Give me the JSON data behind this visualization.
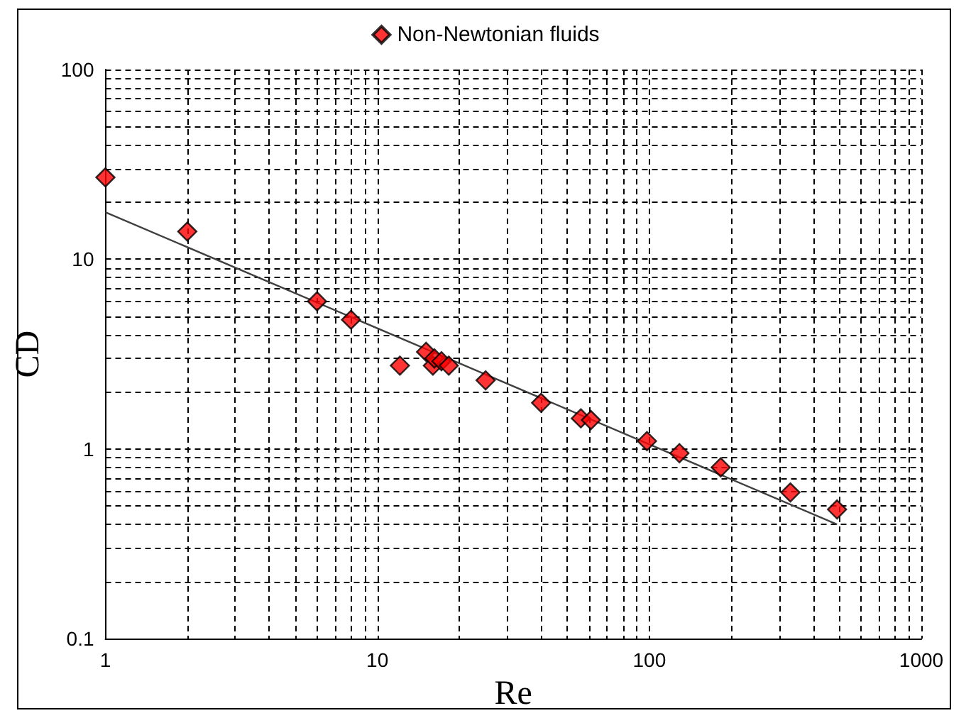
{
  "chart_data": {
    "type": "scatter",
    "xlabel": "Re",
    "ylabel": "CD",
    "log": "xy",
    "grid": true,
    "legend": "top",
    "marker": "diamond",
    "xlim": [
      1,
      1000
    ],
    "xticks": [
      1,
      {
        "value": 2,
        "label": null
      },
      {
        "value": 3,
        "label": null
      },
      {
        "value": 4,
        "label": null
      },
      {
        "value": 5,
        "label": null
      },
      {
        "value": 6,
        "label": null
      },
      {
        "value": 7,
        "label": null
      },
      {
        "value": 8,
        "label": null
      },
      {
        "value": 9,
        "label": null
      },
      10,
      {
        "value": 20,
        "label": null
      },
      {
        "value": 30,
        "label": null
      },
      {
        "value": 40,
        "label": null
      },
      {
        "value": 50,
        "label": null
      },
      {
        "value": 60,
        "label": null
      },
      {
        "value": 70,
        "label": null
      },
      {
        "value": 80,
        "label": null
      },
      {
        "value": 90,
        "label": null
      },
      100,
      {
        "value": 200,
        "label": null
      },
      {
        "value": 300,
        "label": null
      },
      {
        "value": 400,
        "label": null
      },
      {
        "value": 500,
        "label": null
      },
      {
        "value": 600,
        "label": null
      },
      {
        "value": 700,
        "label": null
      },
      {
        "value": 800,
        "label": null
      },
      {
        "value": 900,
        "label": null
      },
      1000
    ],
    "ylim": [
      0.1,
      100
    ],
    "yticks": [
      0.1,
      {
        "value": 0.2,
        "label": null
      },
      {
        "value": 0.3,
        "label": null
      },
      {
        "value": 0.4,
        "label": null
      },
      {
        "value": 0.5,
        "label": null
      },
      {
        "value": 0.6,
        "label": null
      },
      {
        "value": 0.7,
        "label": null
      },
      {
        "value": 0.8,
        "label": null
      },
      {
        "value": 0.9,
        "label": null
      },
      1,
      {
        "value": 2,
        "label": null
      },
      {
        "value": 3,
        "label": null
      },
      {
        "value": 4,
        "label": null
      },
      {
        "value": 5,
        "label": null
      },
      {
        "value": 6,
        "label": null
      },
      {
        "value": 7,
        "label": null
      },
      {
        "value": 8,
        "label": null
      },
      {
        "value": 9,
        "label": null
      },
      10,
      {
        "value": 20,
        "label": null
      },
      {
        "value": 30,
        "label": null
      },
      {
        "value": 40,
        "label": null
      },
      {
        "value": 50,
        "label": null
      },
      {
        "value": 60,
        "label": null
      },
      {
        "value": 70,
        "label": null
      },
      {
        "value": 80,
        "label": null
      },
      {
        "value": 90,
        "label": null
      },
      100
    ],
    "series": [
      {
        "name": "Non-Newtonian fluids",
        "color": "#ff0000",
        "x": [
          1,
          2,
          6,
          8,
          12.1,
          15.1,
          16,
          16.2,
          17.2,
          18.3,
          25,
          40,
          56,
          61,
          98,
          129,
          183,
          330,
          490
        ],
        "values": [
          27,
          14,
          6,
          4.8,
          2.75,
          3.25,
          2.75,
          3,
          2.9,
          2.75,
          2.3,
          1.75,
          1.45,
          1.42,
          1.1,
          0.95,
          0.8,
          0.59,
          0.48
        ]
      },
      {
        "type": "line",
        "color": "#404040",
        "marker": "none",
        "x": [
          1,
          490
        ],
        "values": [
          17.7,
          0.4
        ]
      }
    ]
  }
}
